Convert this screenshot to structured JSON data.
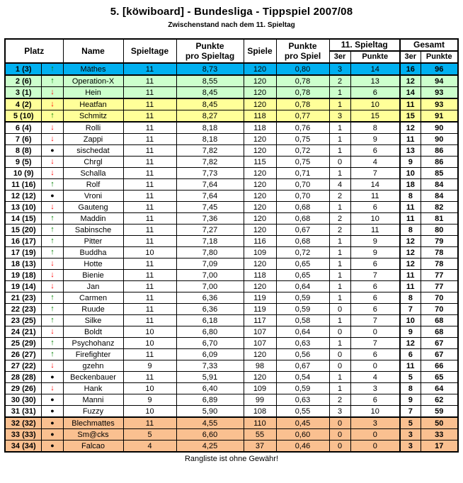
{
  "title": "5. [köwiboard] - Bundesliga - Tippspiel 2007/08",
  "subtitle": "Zwischenstand nach dem 11. Spieltag",
  "footer": "Rangliste ist ohne Gewähr!",
  "colors": {
    "blue": "#00B0F0",
    "green": "#CCFFCC",
    "yellow": "#FFFF99",
    "orange": "#FAC090",
    "white": "#FFFFFF",
    "trend_up": "#008000",
    "trend_down": "#FF0000",
    "trend_same": "#000000",
    "border": "#000000"
  },
  "trend_icons": {
    "up": "↑",
    "down": "↓",
    "same": "●"
  },
  "table": {
    "headers": {
      "platz": "Platz",
      "name": "Name",
      "spieltage": "Spieltage",
      "punkte_pro_spieltag": "Punkte\npro Spieltag",
      "spiele": "Spiele",
      "punkte_pro_spiel": "Punkte\npro Spiel",
      "spieltag11": "11. Spieltag",
      "gesamt": "Gesamt",
      "dreier": "3er",
      "punkte": "Punkte"
    },
    "rows": [
      {
        "platz": "1 (3)",
        "trend": "up",
        "name": "Mäthes",
        "spieltage": "11",
        "ppspieltag": "8,73",
        "spiele": "120",
        "ppspiel": "0,80",
        "s11_3er": "3",
        "s11_punkte": "14",
        "ges_3er": "16",
        "ges_punkte": "96",
        "bg": "blue",
        "group_end": true
      },
      {
        "platz": "2 (6)",
        "trend": "up",
        "name": "Operation-X",
        "spieltage": "11",
        "ppspieltag": "8,55",
        "spiele": "120",
        "ppspiel": "0,78",
        "s11_3er": "2",
        "s11_punkte": "13",
        "ges_3er": "12",
        "ges_punkte": "94",
        "bg": "green",
        "group_end": false
      },
      {
        "platz": "3 (1)",
        "trend": "down",
        "name": "Hein",
        "spieltage": "11",
        "ppspieltag": "8,45",
        "spiele": "120",
        "ppspiel": "0,78",
        "s11_3er": "1",
        "s11_punkte": "6",
        "ges_3er": "14",
        "ges_punkte": "93",
        "bg": "green",
        "group_end": true
      },
      {
        "platz": "4 (2)",
        "trend": "down",
        "name": "Heatfan",
        "spieltage": "11",
        "ppspieltag": "8,45",
        "spiele": "120",
        "ppspiel": "0,78",
        "s11_3er": "1",
        "s11_punkte": "10",
        "ges_3er": "11",
        "ges_punkte": "93",
        "bg": "yellow",
        "group_end": false
      },
      {
        "platz": "5 (10)",
        "trend": "up",
        "name": "Schmitz",
        "spieltage": "11",
        "ppspieltag": "8,27",
        "spiele": "118",
        "ppspiel": "0,77",
        "s11_3er": "3",
        "s11_punkte": "15",
        "ges_3er": "15",
        "ges_punkte": "91",
        "bg": "yellow",
        "group_end": true
      },
      {
        "platz": "6 (4)",
        "trend": "down",
        "name": "Rolli",
        "spieltage": "11",
        "ppspieltag": "8,18",
        "spiele": "118",
        "ppspiel": "0,76",
        "s11_3er": "1",
        "s11_punkte": "8",
        "ges_3er": "12",
        "ges_punkte": "90",
        "bg": "white",
        "group_end": false
      },
      {
        "platz": "7 (6)",
        "trend": "down",
        "name": "Zappi",
        "spieltage": "11",
        "ppspieltag": "8,18",
        "spiele": "120",
        "ppspiel": "0,75",
        "s11_3er": "1",
        "s11_punkte": "9",
        "ges_3er": "11",
        "ges_punkte": "90",
        "bg": "white",
        "group_end": false
      },
      {
        "platz": "8 (8)",
        "trend": "same",
        "name": "sischedat",
        "spieltage": "11",
        "ppspieltag": "7,82",
        "spiele": "120",
        "ppspiel": "0,72",
        "s11_3er": "1",
        "s11_punkte": "6",
        "ges_3er": "13",
        "ges_punkte": "86",
        "bg": "white",
        "group_end": false
      },
      {
        "platz": "9 (5)",
        "trend": "down",
        "name": "Chrgl",
        "spieltage": "11",
        "ppspieltag": "7,82",
        "spiele": "115",
        "ppspiel": "0,75",
        "s11_3er": "0",
        "s11_punkte": "4",
        "ges_3er": "9",
        "ges_punkte": "86",
        "bg": "white",
        "group_end": false
      },
      {
        "platz": "10 (9)",
        "trend": "down",
        "name": "Schalla",
        "spieltage": "11",
        "ppspieltag": "7,73",
        "spiele": "120",
        "ppspiel": "0,71",
        "s11_3er": "1",
        "s11_punkte": "7",
        "ges_3er": "10",
        "ges_punkte": "85",
        "bg": "white",
        "group_end": false
      },
      {
        "platz": "11 (16)",
        "trend": "up",
        "name": "Rolf",
        "spieltage": "11",
        "ppspieltag": "7,64",
        "spiele": "120",
        "ppspiel": "0,70",
        "s11_3er": "4",
        "s11_punkte": "14",
        "ges_3er": "18",
        "ges_punkte": "84",
        "bg": "white",
        "group_end": false
      },
      {
        "platz": "12 (12)",
        "trend": "same",
        "name": "Vroni",
        "spieltage": "11",
        "ppspieltag": "7,64",
        "spiele": "120",
        "ppspiel": "0,70",
        "s11_3er": "2",
        "s11_punkte": "11",
        "ges_3er": "8",
        "ges_punkte": "84",
        "bg": "white",
        "group_end": false
      },
      {
        "platz": "13 (10)",
        "trend": "down",
        "name": "Gauteng",
        "spieltage": "11",
        "ppspieltag": "7,45",
        "spiele": "120",
        "ppspiel": "0,68",
        "s11_3er": "1",
        "s11_punkte": "6",
        "ges_3er": "11",
        "ges_punkte": "82",
        "bg": "white",
        "group_end": false
      },
      {
        "platz": "14 (15)",
        "trend": "up",
        "name": "Maddin",
        "spieltage": "11",
        "ppspieltag": "7,36",
        "spiele": "120",
        "ppspiel": "0,68",
        "s11_3er": "2",
        "s11_punkte": "10",
        "ges_3er": "11",
        "ges_punkte": "81",
        "bg": "white",
        "group_end": false
      },
      {
        "platz": "15 (20)",
        "trend": "up",
        "name": "Sabinsche",
        "spieltage": "11",
        "ppspieltag": "7,27",
        "spiele": "120",
        "ppspiel": "0,67",
        "s11_3er": "2",
        "s11_punkte": "11",
        "ges_3er": "8",
        "ges_punkte": "80",
        "bg": "white",
        "group_end": false
      },
      {
        "platz": "16 (17)",
        "trend": "up",
        "name": "Pitter",
        "spieltage": "11",
        "ppspieltag": "7,18",
        "spiele": "116",
        "ppspiel": "0,68",
        "s11_3er": "1",
        "s11_punkte": "9",
        "ges_3er": "12",
        "ges_punkte": "79",
        "bg": "white",
        "group_end": false
      },
      {
        "platz": "17 (19)",
        "trend": "up",
        "name": "Buddha",
        "spieltage": "10",
        "ppspieltag": "7,80",
        "spiele": "109",
        "ppspiel": "0,72",
        "s11_3er": "1",
        "s11_punkte": "9",
        "ges_3er": "12",
        "ges_punkte": "78",
        "bg": "white",
        "group_end": false
      },
      {
        "platz": "18 (13)",
        "trend": "down",
        "name": "Hotte",
        "spieltage": "11",
        "ppspieltag": "7,09",
        "spiele": "120",
        "ppspiel": "0,65",
        "s11_3er": "1",
        "s11_punkte": "6",
        "ges_3er": "12",
        "ges_punkte": "78",
        "bg": "white",
        "group_end": false
      },
      {
        "platz": "19 (18)",
        "trend": "down",
        "name": "Bienie",
        "spieltage": "11",
        "ppspieltag": "7,00",
        "spiele": "118",
        "ppspiel": "0,65",
        "s11_3er": "1",
        "s11_punkte": "7",
        "ges_3er": "11",
        "ges_punkte": "77",
        "bg": "white",
        "group_end": false
      },
      {
        "platz": "19 (14)",
        "trend": "down",
        "name": "Jan",
        "spieltage": "11",
        "ppspieltag": "7,00",
        "spiele": "120",
        "ppspiel": "0,64",
        "s11_3er": "1",
        "s11_punkte": "6",
        "ges_3er": "11",
        "ges_punkte": "77",
        "bg": "white",
        "group_end": false
      },
      {
        "platz": "21 (23)",
        "trend": "up",
        "name": "Carmen",
        "spieltage": "11",
        "ppspieltag": "6,36",
        "spiele": "119",
        "ppspiel": "0,59",
        "s11_3er": "1",
        "s11_punkte": "6",
        "ges_3er": "8",
        "ges_punkte": "70",
        "bg": "white",
        "group_end": false
      },
      {
        "platz": "22 (23)",
        "trend": "up",
        "name": "Ruude",
        "spieltage": "11",
        "ppspieltag": "6,36",
        "spiele": "119",
        "ppspiel": "0,59",
        "s11_3er": "0",
        "s11_punkte": "6",
        "ges_3er": "7",
        "ges_punkte": "70",
        "bg": "white",
        "group_end": false
      },
      {
        "platz": "23 (25)",
        "trend": "up",
        "name": "Silke",
        "spieltage": "11",
        "ppspieltag": "6,18",
        "spiele": "117",
        "ppspiel": "0,58",
        "s11_3er": "1",
        "s11_punkte": "7",
        "ges_3er": "10",
        "ges_punkte": "68",
        "bg": "white",
        "group_end": false
      },
      {
        "platz": "24 (21)",
        "trend": "down",
        "name": "Boldt",
        "spieltage": "10",
        "ppspieltag": "6,80",
        "spiele": "107",
        "ppspiel": "0,64",
        "s11_3er": "0",
        "s11_punkte": "0",
        "ges_3er": "9",
        "ges_punkte": "68",
        "bg": "white",
        "group_end": false
      },
      {
        "platz": "25 (29)",
        "trend": "up",
        "name": "Psychohanz",
        "spieltage": "10",
        "ppspieltag": "6,70",
        "spiele": "107",
        "ppspiel": "0,63",
        "s11_3er": "1",
        "s11_punkte": "7",
        "ges_3er": "12",
        "ges_punkte": "67",
        "bg": "white",
        "group_end": false
      },
      {
        "platz": "26 (27)",
        "trend": "up",
        "name": "Firefighter",
        "spieltage": "11",
        "ppspieltag": "6,09",
        "spiele": "120",
        "ppspiel": "0,56",
        "s11_3er": "0",
        "s11_punkte": "6",
        "ges_3er": "6",
        "ges_punkte": "67",
        "bg": "white",
        "group_end": false
      },
      {
        "platz": "27 (22)",
        "trend": "down",
        "name": "gzehn",
        "spieltage": "9",
        "ppspieltag": "7,33",
        "spiele": "98",
        "ppspiel": "0,67",
        "s11_3er": "0",
        "s11_punkte": "0",
        "ges_3er": "11",
        "ges_punkte": "66",
        "bg": "white",
        "group_end": false
      },
      {
        "platz": "28 (28)",
        "trend": "same",
        "name": "Beckenbauer",
        "spieltage": "11",
        "ppspieltag": "5,91",
        "spiele": "120",
        "ppspiel": "0,54",
        "s11_3er": "1",
        "s11_punkte": "4",
        "ges_3er": "5",
        "ges_punkte": "65",
        "bg": "white",
        "group_end": false
      },
      {
        "platz": "29 (26)",
        "trend": "down",
        "name": "Hank",
        "spieltage": "10",
        "ppspieltag": "6,40",
        "spiele": "109",
        "ppspiel": "0,59",
        "s11_3er": "1",
        "s11_punkte": "3",
        "ges_3er": "8",
        "ges_punkte": "64",
        "bg": "white",
        "group_end": false
      },
      {
        "platz": "30 (30)",
        "trend": "same",
        "name": "Manni",
        "spieltage": "9",
        "ppspieltag": "6,89",
        "spiele": "99",
        "ppspiel": "0,63",
        "s11_3er": "2",
        "s11_punkte": "6",
        "ges_3er": "9",
        "ges_punkte": "62",
        "bg": "white",
        "group_end": false
      },
      {
        "platz": "31 (31)",
        "trend": "same",
        "name": "Fuzzy",
        "spieltage": "10",
        "ppspieltag": "5,90",
        "spiele": "108",
        "ppspiel": "0,55",
        "s11_3er": "3",
        "s11_punkte": "10",
        "ges_3er": "7",
        "ges_punkte": "59",
        "bg": "white",
        "group_end": true
      },
      {
        "platz": "32 (32)",
        "trend": "same",
        "name": "Blechmattes",
        "spieltage": "11",
        "ppspieltag": "4,55",
        "spiele": "110",
        "ppspiel": "0,45",
        "s11_3er": "0",
        "s11_punkte": "3",
        "ges_3er": "5",
        "ges_punkte": "50",
        "bg": "orange",
        "group_end": false
      },
      {
        "platz": "33 (33)",
        "trend": "same",
        "name": "Sm@cks",
        "spieltage": "5",
        "ppspieltag": "6,60",
        "spiele": "55",
        "ppspiel": "0,60",
        "s11_3er": "0",
        "s11_punkte": "0",
        "ges_3er": "3",
        "ges_punkte": "33",
        "bg": "orange",
        "group_end": false
      },
      {
        "platz": "34 (34)",
        "trend": "same",
        "name": "Falcao",
        "spieltage": "4",
        "ppspieltag": "4,25",
        "spiele": "37",
        "ppspiel": "0,46",
        "s11_3er": "0",
        "s11_punkte": "0",
        "ges_3er": "3",
        "ges_punkte": "17",
        "bg": "orange",
        "group_end": false
      }
    ]
  }
}
